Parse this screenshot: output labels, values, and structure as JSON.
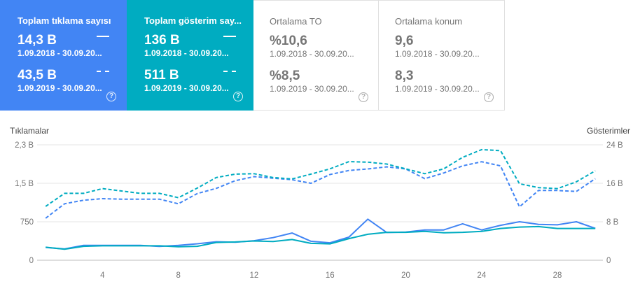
{
  "cards": [
    {
      "title": "Toplam tıklama sayısı",
      "p1_value": "14,3 B",
      "p1_range": "1.09.2018 - 30.09.20...",
      "p2_value": "43,5 B",
      "p2_range": "1.09.2019 - 30.09.20...",
      "help": "?"
    },
    {
      "title": "Toplam gösterim say...",
      "p1_value": "136 B",
      "p1_range": "1.09.2018 - 30.09.20...",
      "p2_value": "511 B",
      "p2_range": "1.09.2019 - 30.09.20...",
      "help": "?"
    },
    {
      "title": "Ortalama TO",
      "p1_value": "%10,6",
      "p1_range": "1.09.2018 - 30.09.20...",
      "p2_value": "%8,5",
      "p2_range": "1.09.2019 - 30.09.20...",
      "help": "?"
    },
    {
      "title": "Ortalama konum",
      "p1_value": "9,6",
      "p1_range": "1.09.2018 - 30.09.20...",
      "p2_value": "8,3",
      "p2_range": "1.09.2019 - 30.09.20...",
      "help": "?"
    }
  ],
  "colors": {
    "clicks": "#4285f4",
    "impressions": "#00acc1",
    "grid": "#e6e6e6",
    "axis_text": "#757575"
  },
  "chart_data": {
    "type": "line",
    "ylabel_left": "Tıklamalar",
    "ylabel_right": "Gösterimler",
    "left_ticks": [
      "0",
      "750",
      "1,5 B",
      "2,3 B"
    ],
    "left_tick_values": [
      0,
      750,
      1500,
      2250
    ],
    "right_ticks": [
      "0",
      "8 B",
      "16 B",
      "24 B"
    ],
    "right_tick_values": [
      0,
      8000,
      16000,
      24000
    ],
    "ylim_left": [
      0,
      2250
    ],
    "ylim_right": [
      0,
      24000
    ],
    "x_ticks": [
      "4",
      "8",
      "12",
      "16",
      "20",
      "24",
      "28"
    ],
    "x_tick_values": [
      4,
      8,
      12,
      16,
      20,
      24,
      28
    ],
    "x": [
      1,
      2,
      3,
      4,
      5,
      6,
      7,
      8,
      9,
      10,
      11,
      12,
      13,
      14,
      15,
      16,
      17,
      18,
      19,
      20,
      21,
      22,
      23,
      24,
      25,
      26,
      27,
      28,
      29,
      30
    ],
    "series": [
      {
        "axis": "left",
        "style": "solid",
        "color": "#4285f4",
        "values": [
          250,
          220,
          290,
          290,
          290,
          290,
          270,
          290,
          320,
          360,
          350,
          380,
          440,
          530,
          370,
          340,
          450,
          800,
          540,
          550,
          590,
          590,
          710,
          590,
          680,
          750,
          700,
          690,
          750,
          620
        ]
      },
      {
        "axis": "right",
        "style": "solid",
        "color": "#00acc1",
        "values": [
          2700,
          2300,
          2900,
          3000,
          3000,
          3000,
          3000,
          2800,
          2900,
          3700,
          3800,
          4000,
          3900,
          4300,
          3500,
          3400,
          4500,
          5400,
          5800,
          5800,
          6000,
          5700,
          5800,
          6000,
          6600,
          6900,
          7000,
          6600,
          6600,
          6600
        ]
      },
      {
        "axis": "left",
        "style": "dashed",
        "color": "#4285f4",
        "values": [
          820,
          1100,
          1170,
          1200,
          1190,
          1190,
          1190,
          1100,
          1300,
          1400,
          1550,
          1630,
          1600,
          1570,
          1500,
          1670,
          1750,
          1780,
          1820,
          1780,
          1590,
          1700,
          1840,
          1920,
          1840,
          1040,
          1360,
          1360,
          1340,
          1590
        ]
      },
      {
        "axis": "right",
        "style": "dashed",
        "color": "#00acc1",
        "values": [
          11200,
          13900,
          13900,
          14900,
          14400,
          13900,
          13900,
          13000,
          15000,
          17200,
          17900,
          18000,
          17200,
          16900,
          17900,
          19000,
          20500,
          20400,
          20000,
          19000,
          18000,
          19000,
          21400,
          23000,
          22800,
          15900,
          15100,
          14900,
          16300,
          18600
        ]
      }
    ]
  }
}
